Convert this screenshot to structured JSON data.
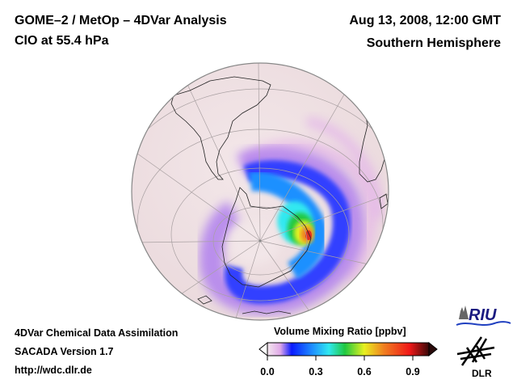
{
  "header": {
    "title": "GOME–2 / MetOp – 4DVar Analysis",
    "subtitle": "ClO at 55.4 hPa",
    "date": "Aug 13, 2008, 12:00 GMT",
    "hemisphere": "Southern Hemisphere"
  },
  "footer": {
    "line1": "4DVar Chemical Data Assimilation",
    "line2": "SACADA Version 1.7",
    "line3": "http://wdc.dlr.de"
  },
  "colorbar": {
    "title": "Volume Mixing Ratio [ppbv]",
    "ticks": [
      "0.0",
      "0.3",
      "0.6",
      "0.9"
    ],
    "tick_values": [
      0.0,
      0.3,
      0.6,
      0.9
    ],
    "range": [
      0.0,
      1.0
    ],
    "colors": [
      "#f4e8ee",
      "#e0a8e8",
      "#0a1aff",
      "#1e90ff",
      "#30e8f0",
      "#20c840",
      "#e8f020",
      "#f08020",
      "#f01818",
      "#3a0808"
    ]
  },
  "logos": {
    "riu": "RIU",
    "dlr": "DLR"
  },
  "map": {
    "projection": "orthographic",
    "ocean_color": "#f1e4e6",
    "features": [
      "graticule",
      "coastlines",
      "clo-plume"
    ]
  }
}
